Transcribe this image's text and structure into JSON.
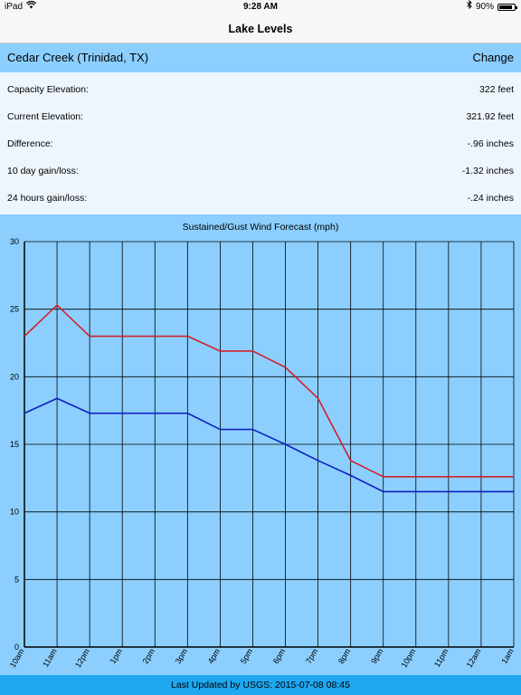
{
  "status_bar": {
    "device": "iPad",
    "time": "9:28 AM",
    "battery": "90%",
    "wifi_icon": "wifi-icon",
    "bluetooth_icon": "bluetooth-icon",
    "battery_icon": "battery-icon"
  },
  "nav": {
    "title": "Lake Levels"
  },
  "location": {
    "name": "Cedar Creek (Trinidad, TX)",
    "change_label": "Change"
  },
  "stats": [
    {
      "label": "Capacity Elevation:",
      "value": "322 feet"
    },
    {
      "label": "Current Elevation:",
      "value": "321.92 feet"
    },
    {
      "label": "Difference:",
      "value": "-.96 inches"
    },
    {
      "label": "10 day gain/loss:",
      "value": "-1.32 inches"
    },
    {
      "label": "24 hours gain/loss:",
      "value": "-.24 inches"
    }
  ],
  "footer": {
    "text": "Last Updated by USGS:  2015-07-08 08:45"
  },
  "colors": {
    "gust_line": "#d0202a",
    "sustained_line": "#1020c0",
    "chart_background": "#8ccfff",
    "footer_background": "#1fa7f0"
  },
  "chart_data": {
    "type": "line",
    "title": "Sustained/Gust Wind Forecast (mph)",
    "xlabel": "",
    "ylabel": "",
    "categories": [
      "10am",
      "11am",
      "12pm",
      "1pm",
      "2pm",
      "3pm",
      "4pm",
      "5pm",
      "6pm",
      "7pm",
      "8pm",
      "9pm",
      "10pm",
      "11pm",
      "12am",
      "1am"
    ],
    "ylim": [
      0,
      30
    ],
    "yticks": [
      0,
      5,
      10,
      15,
      20,
      25,
      30
    ],
    "grid": true,
    "series": [
      {
        "key": "gust",
        "color": "#d0202a",
        "values": [
          23.0,
          25.3,
          23.0,
          23.0,
          23.0,
          23.0,
          21.9,
          21.9,
          20.7,
          18.4,
          13.8,
          12.6,
          12.6,
          12.6,
          12.6,
          12.6
        ]
      },
      {
        "key": "sustained",
        "color": "#1020c0",
        "values": [
          17.3,
          18.4,
          17.3,
          17.3,
          17.3,
          17.3,
          16.1,
          16.1,
          15.0,
          13.8,
          12.7,
          11.5,
          11.5,
          11.5,
          11.5,
          11.5
        ]
      }
    ]
  }
}
